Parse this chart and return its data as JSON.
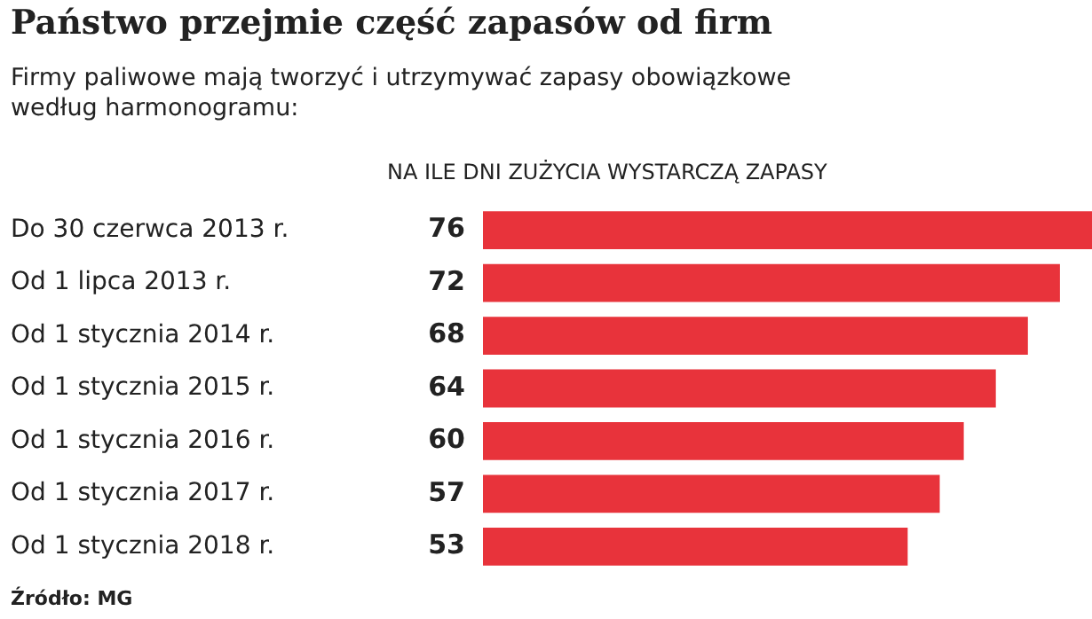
{
  "chart_data": {
    "type": "bar",
    "orientation": "horizontal",
    "title": "Państwo przejmie część zapasów od firm",
    "subtitle": "Firmy paliwowe mają tworzyć i utrzymywać zapasy obowiązkowe według harmonogramu:",
    "xlabel": "NA ILE DNI ZUŻYCIA WYSTARCZĄ ZAPASY",
    "categories": [
      "Do 30 czerwca 2013 r.",
      "Od 1 lipca 2013 r.",
      "Od 1 stycznia 2014 r.",
      "Od 1 stycznia 2015 r.",
      "Od 1 stycznia 2016 r.",
      "Od 1 stycznia 2017 r.",
      "Od 1 stycznia 2018 r."
    ],
    "values": [
      76,
      72,
      68,
      64,
      60,
      57,
      53
    ],
    "color": "#e8333b",
    "data_labels": true,
    "legend": false,
    "annotations": [
      "Źródło: MG"
    ]
  }
}
